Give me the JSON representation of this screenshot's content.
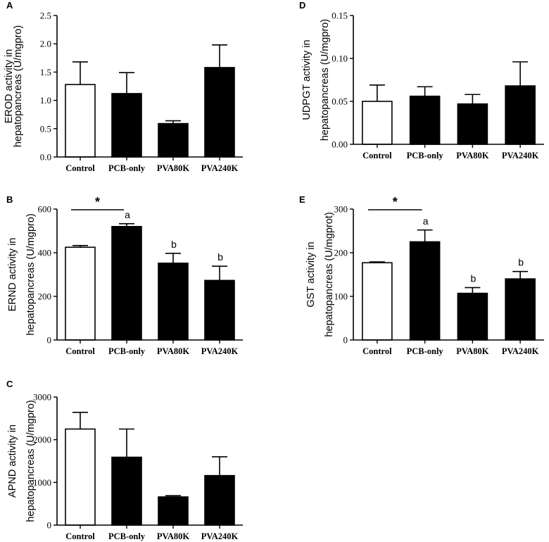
{
  "figure": {
    "bar_colors": {
      "control": "#ffffff",
      "treatment": "#000000"
    },
    "axis_color": "#000000"
  },
  "chart_data": [
    {
      "id": "A",
      "panel": "A",
      "type": "bar",
      "categories": [
        "Control",
        "PCB-only",
        "PVA80K",
        "PVA240K"
      ],
      "series": [
        {
          "name": "mean",
          "values": [
            1.28,
            1.12,
            0.59,
            1.58
          ],
          "errors": [
            0.4,
            0.37,
            0.05,
            0.4
          ]
        }
      ],
      "ylabel_lines": [
        "EROD  activity in",
        "hepatopancreas (U/mgpro)"
      ],
      "ylim": [
        0,
        2.5
      ],
      "yticks": [
        0,
        0.5,
        1.0,
        1.5,
        2.0,
        2.5
      ],
      "ytick_labels": [
        "0.0",
        "0.5",
        "1.0",
        "1.5",
        "2.0",
        "2.5"
      ],
      "bar_labels": [
        "",
        "",
        "",
        ""
      ],
      "significance": null
    },
    {
      "id": "B",
      "panel": "B",
      "type": "bar",
      "categories": [
        "Control",
        "PCB-only",
        "PVA80K",
        "PVA240K"
      ],
      "series": [
        {
          "name": "mean",
          "values": [
            425,
            520,
            352,
            273
          ],
          "errors": [
            8,
            13,
            45,
            65
          ]
        }
      ],
      "ylabel_lines": [
        "ERND  activity in",
        "hepatopancreas (U/mgpro)"
      ],
      "ylim": [
        0,
        600
      ],
      "yticks": [
        0,
        200,
        400,
        600
      ],
      "ytick_labels": [
        "0",
        "200",
        "400",
        "600"
      ],
      "bar_labels": [
        "",
        "a",
        "b",
        "b"
      ],
      "significance": {
        "from": 0,
        "to": 1,
        "label": "*"
      }
    },
    {
      "id": "C",
      "panel": "C",
      "type": "bar",
      "categories": [
        "Control",
        "PCB-only",
        "PVA80K",
        "PVA240K"
      ],
      "series": [
        {
          "name": "mean",
          "values": [
            2250,
            1590,
            660,
            1160
          ],
          "errors": [
            390,
            660,
            30,
            440
          ]
        }
      ],
      "ylabel_lines": [
        "APND  activity in",
        "hepatopancreas (U/mgpro)"
      ],
      "ylim": [
        0,
        3000
      ],
      "yticks": [
        0,
        1000,
        2000,
        3000
      ],
      "ytick_labels": [
        "0",
        "1000",
        "2000",
        "3000"
      ],
      "bar_labels": [
        "",
        "",
        "",
        ""
      ],
      "significance": null
    },
    {
      "id": "D",
      "panel": "D",
      "type": "bar",
      "categories": [
        "Control",
        "PCB-only",
        "PVA80K",
        "PVA240K"
      ],
      "series": [
        {
          "name": "mean",
          "values": [
            0.05,
            0.056,
            0.047,
            0.068
          ],
          "errors": [
            0.019,
            0.011,
            0.011,
            0.028
          ]
        }
      ],
      "ylabel_lines": [
        "UDPGT  activity in",
        "hepatopancreas (U/mgpro)"
      ],
      "ylim": [
        0,
        0.15
      ],
      "yticks": [
        0,
        0.05,
        0.1,
        0.15
      ],
      "ytick_labels": [
        "0.00",
        "0.05",
        "0.10",
        "0.15"
      ],
      "bar_labels": [
        "",
        "",
        "",
        ""
      ],
      "significance": null
    },
    {
      "id": "E",
      "panel": "E",
      "type": "bar",
      "categories": [
        "Control",
        "PCB-only",
        "PVA80K",
        "PVA240K"
      ],
      "series": [
        {
          "name": "mean",
          "values": [
            177,
            225,
            107,
            140
          ],
          "errors": [
            2,
            27,
            13,
            17
          ]
        }
      ],
      "ylabel_lines": [
        "GST activity in",
        "hepatopancreas (U/mgprot)"
      ],
      "ylim": [
        0,
        300
      ],
      "yticks": [
        0,
        100,
        200,
        300
      ],
      "ytick_labels": [
        "0",
        "100",
        "200",
        "300"
      ],
      "bar_labels": [
        "",
        "a",
        "b",
        "b"
      ],
      "significance": {
        "from": 0,
        "to": 1,
        "label": "*"
      }
    }
  ]
}
